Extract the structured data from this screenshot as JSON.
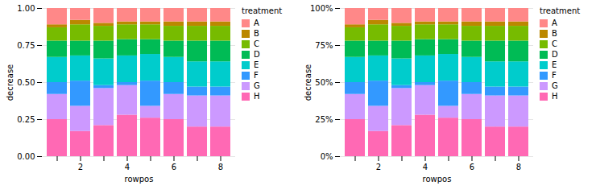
{
  "chart_data": [
    {
      "type": "bar",
      "stacked": true,
      "grid": true,
      "legend": "right",
      "legend_title": "treatment",
      "xlabel": "rowpos",
      "ylabel": "decrease",
      "categories": [
        null,
        "2",
        null,
        "4",
        null,
        "6",
        null,
        "8"
      ],
      "ylim": [
        0,
        1
      ],
      "yticks": [
        {
          "value": 0,
          "label": "0.00"
        },
        {
          "value": 0.25,
          "label": "0.25"
        },
        {
          "value": 0.5,
          "label": "0.50"
        },
        {
          "value": 0.75,
          "label": "0.75"
        },
        {
          "value": 1,
          "label": "1.00"
        }
      ],
      "series": [
        {
          "name": "H",
          "color": "#FF69B4",
          "values": [
            0.25,
            0.17,
            0.21,
            0.28,
            0.26,
            0.25,
            0.2,
            0.2
          ]
        },
        {
          "name": "G",
          "color": "#CC99FF",
          "values": [
            0.17,
            0.17,
            0.25,
            0.2,
            0.08,
            0.17,
            0.21,
            0.21
          ]
        },
        {
          "name": "F",
          "color": "#3399FF",
          "values": [
            0.08,
            0.17,
            0.02,
            0.02,
            0.17,
            0.08,
            0.06,
            0.06
          ]
        },
        {
          "name": "E",
          "color": "#00CCCC",
          "values": [
            0.17,
            0.17,
            0.18,
            0.18,
            0.18,
            0.17,
            0.17,
            0.17
          ]
        },
        {
          "name": "D",
          "color": "#00BB55",
          "values": [
            0.11,
            0.1,
            0.12,
            0.11,
            0.1,
            0.11,
            0.14,
            0.14
          ]
        },
        {
          "name": "C",
          "color": "#77BB00",
          "values": [
            0.09,
            0.11,
            0.1,
            0.1,
            0.1,
            0.1,
            0.1,
            0.1
          ]
        },
        {
          "name": "B",
          "color": "#BB8800",
          "values": [
            0.02,
            0.03,
            0.02,
            0.02,
            0.02,
            0.03,
            0.03,
            0.03
          ]
        },
        {
          "name": "A",
          "color": "#FF8888",
          "values": [
            0.11,
            0.08,
            0.1,
            0.09,
            0.09,
            0.09,
            0.09,
            0.09
          ]
        }
      ]
    },
    {
      "type": "bar",
      "stacked": true,
      "grid": true,
      "legend": "right",
      "legend_title": "treatment",
      "xlabel": "rowpos",
      "ylabel": "decrease",
      "categories": [
        null,
        "2",
        null,
        "4",
        null,
        "6",
        null,
        "8"
      ],
      "ylim": [
        0,
        1
      ],
      "yticks": [
        {
          "value": 0,
          "label": "0%"
        },
        {
          "value": 0.25,
          "label": "25%"
        },
        {
          "value": 0.5,
          "label": "50%"
        },
        {
          "value": 0.75,
          "label": "75%"
        },
        {
          "value": 1,
          "label": "100%"
        }
      ],
      "series": [
        {
          "name": "H",
          "color": "#FF69B4",
          "values": [
            0.25,
            0.17,
            0.21,
            0.28,
            0.26,
            0.25,
            0.2,
            0.2
          ]
        },
        {
          "name": "G",
          "color": "#CC99FF",
          "values": [
            0.17,
            0.17,
            0.25,
            0.2,
            0.08,
            0.17,
            0.21,
            0.21
          ]
        },
        {
          "name": "F",
          "color": "#3399FF",
          "values": [
            0.08,
            0.17,
            0.02,
            0.02,
            0.17,
            0.08,
            0.06,
            0.06
          ]
        },
        {
          "name": "E",
          "color": "#00CCCC",
          "values": [
            0.17,
            0.17,
            0.18,
            0.18,
            0.18,
            0.17,
            0.17,
            0.17
          ]
        },
        {
          "name": "D",
          "color": "#00BB55",
          "values": [
            0.11,
            0.1,
            0.12,
            0.11,
            0.1,
            0.11,
            0.14,
            0.14
          ]
        },
        {
          "name": "C",
          "color": "#77BB00",
          "values": [
            0.09,
            0.11,
            0.1,
            0.1,
            0.1,
            0.1,
            0.1,
            0.1
          ]
        },
        {
          "name": "B",
          "color": "#BB8800",
          "values": [
            0.02,
            0.03,
            0.02,
            0.02,
            0.02,
            0.03,
            0.03,
            0.03
          ]
        },
        {
          "name": "A",
          "color": "#FF8888",
          "values": [
            0.11,
            0.08,
            0.1,
            0.09,
            0.09,
            0.09,
            0.09,
            0.09
          ]
        }
      ]
    }
  ]
}
